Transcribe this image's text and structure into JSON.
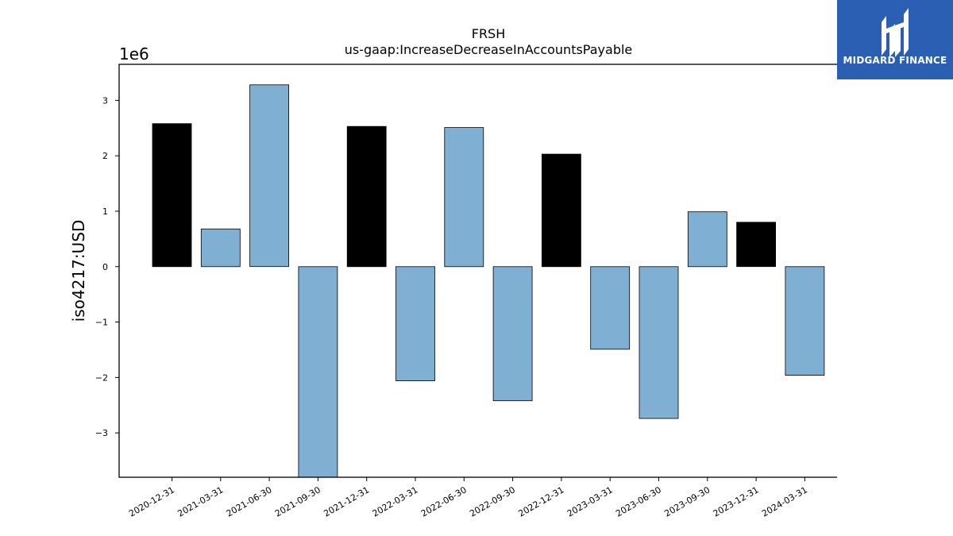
{
  "chart_data": {
    "type": "bar",
    "title": "FRSH",
    "subtitle": "us-gaap:IncreaseDecreaseInAccountsPayable",
    "xlabel": "",
    "ylabel": "iso4217:USD",
    "y_scale_label": "1e6",
    "ylim": [
      -3.8,
      3.65
    ],
    "yticks": [
      -3,
      -2,
      -1,
      0,
      1,
      2,
      3
    ],
    "ytick_labels": [
      "−3",
      "−2",
      "−1",
      "0",
      "1",
      "2",
      "3"
    ],
    "categories": [
      "2020-12-31",
      "2021-03-31",
      "2021-06-30",
      "2021-09-30",
      "2021-12-31",
      "2022-03-31",
      "2022-06-30",
      "2022-09-30",
      "2022-12-31",
      "2023-03-31",
      "2023-06-30",
      "2023-09-30",
      "2023-12-31",
      "2024-03-31"
    ],
    "values": [
      2.58,
      0.68,
      3.28,
      -3.8,
      2.53,
      -2.06,
      2.51,
      -2.42,
      2.03,
      -1.49,
      -2.74,
      0.99,
      0.8,
      -1.96
    ],
    "bar_colors": [
      "#000000",
      "#7fafd3",
      "#7fafd3",
      "#7fafd3",
      "#000000",
      "#7fafd3",
      "#7fafd3",
      "#7fafd3",
      "#000000",
      "#7fafd3",
      "#7fafd3",
      "#7fafd3",
      "#000000",
      "#7fafd3"
    ],
    "grid": false,
    "legend": "none"
  },
  "logo": {
    "text": "MIDGARD FINANCE",
    "background": "#2b5fb4",
    "icon": "midgard-logo-icon"
  }
}
